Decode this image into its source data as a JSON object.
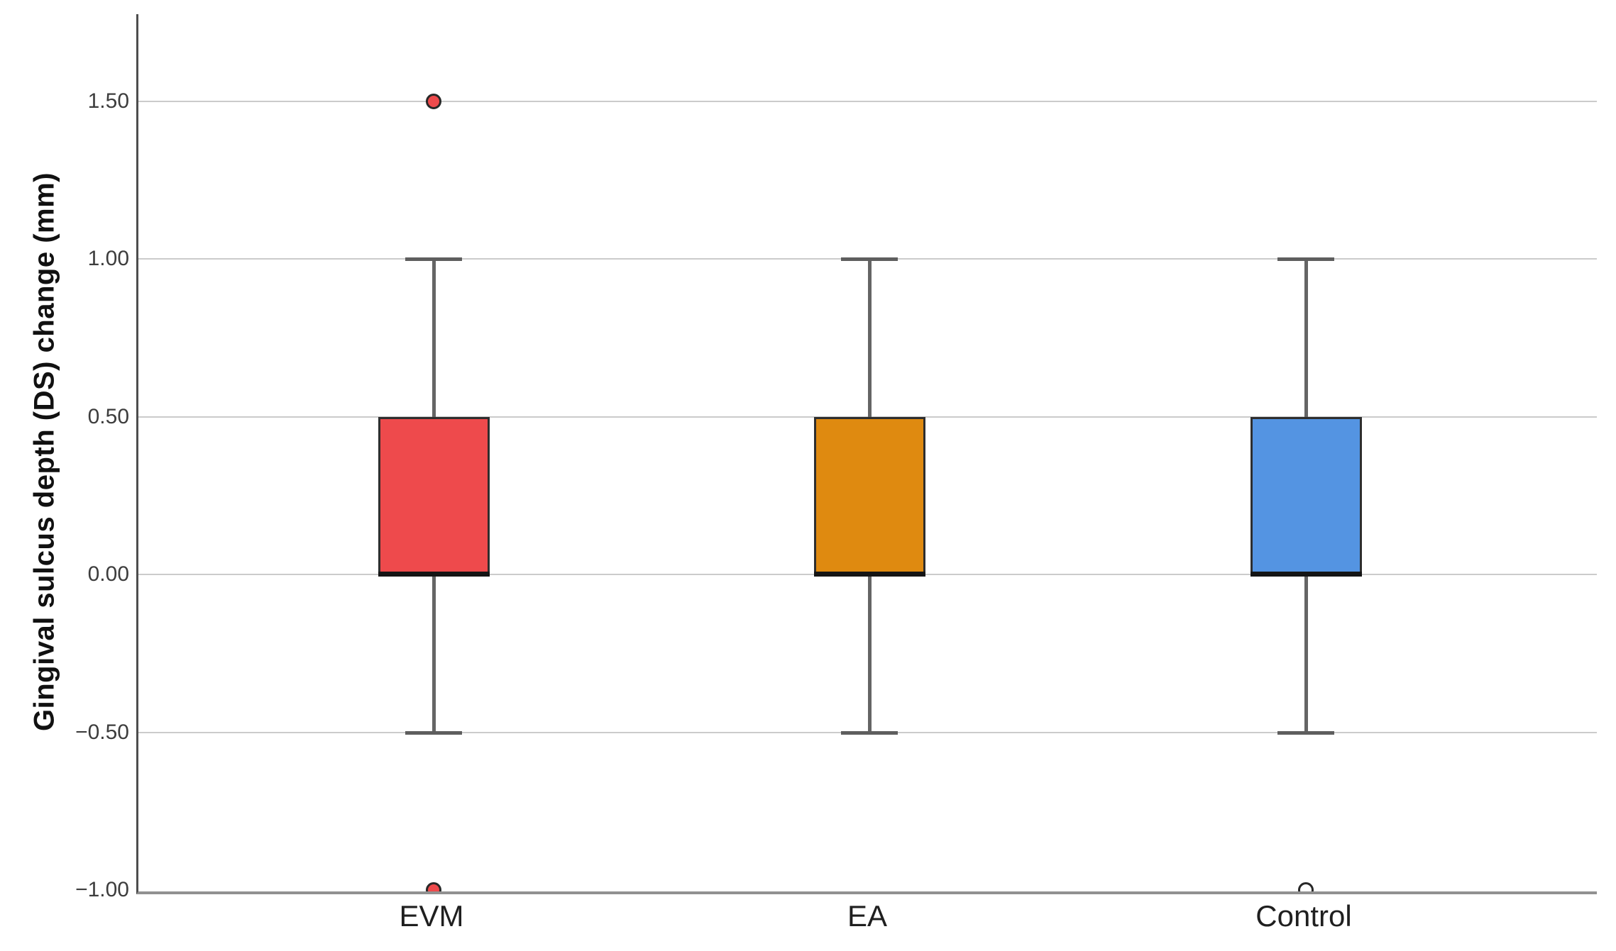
{
  "chart_data": {
    "type": "box",
    "title": "",
    "xlabel": "",
    "ylabel": "Gingival sulcus depth (DS) change (mm)",
    "categories": [
      "EVM",
      "EA",
      "Control"
    ],
    "y_tick_labels": [
      "1.50",
      "1.00",
      "0.50",
      "0.00",
      "−0.50",
      "−1.00"
    ],
    "y_tick_values": [
      1.5,
      1.0,
      0.5,
      0.0,
      -0.5,
      -1.0
    ],
    "gridline_values": [
      1.5,
      1.0,
      0.5,
      0.0,
      -0.5
    ],
    "ylim": [
      -1.0,
      1.78
    ],
    "grid": true,
    "legend": "none",
    "series": [
      {
        "name": "EVM",
        "color": "#EE4A4C",
        "whisker_low": -0.5,
        "q1": 0.0,
        "median": 0.0,
        "q3": 0.5,
        "whisker_high": 1.0,
        "outliers": [
          {
            "value": 1.5,
            "style": "filled"
          },
          {
            "value": -1.0,
            "style": "filled"
          }
        ]
      },
      {
        "name": "EA",
        "color": "#DF8A10",
        "whisker_low": -0.5,
        "q1": 0.0,
        "median": 0.0,
        "q3": 0.5,
        "whisker_high": 1.0,
        "outliers": []
      },
      {
        "name": "Control",
        "color": "#5494E2",
        "whisker_low": -0.5,
        "q1": 0.0,
        "median": 0.0,
        "q3": 0.5,
        "whisker_high": 1.0,
        "outliers": [
          {
            "value": -1.0,
            "style": "open"
          }
        ]
      }
    ]
  }
}
